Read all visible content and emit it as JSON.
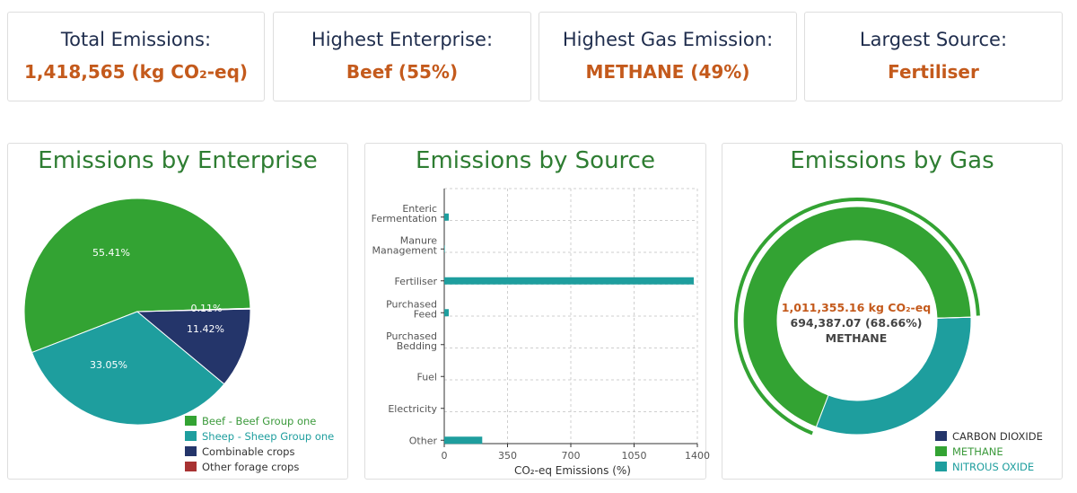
{
  "kpis": [
    {
      "label": "Total Emissions:",
      "value": "1,418,565 (kg CO₂-eq)"
    },
    {
      "label": "Highest Enterprise:",
      "value": "Beef (55%)"
    },
    {
      "label": "Highest Gas Emission:",
      "value": "METHANE (49%)"
    },
    {
      "label": "Largest Source:",
      "value": "Fertiliser"
    }
  ],
  "colors": {
    "green": "#33a333",
    "teal": "#1e9e9e",
    "navy": "#24356a",
    "red": "#a83232",
    "title_green": "#2e7d32",
    "accent_orange": "#c45a1c"
  },
  "charts": {
    "enterprise": {
      "title": "Emissions by Enterprise",
      "legend": [
        {
          "label": "Beef - Beef Group one",
          "color": "#33a333",
          "text_color": "#3c9a3c"
        },
        {
          "label": "Sheep - Sheep Group one",
          "color": "#1e9e9e",
          "text_color": "#1e9e9e"
        },
        {
          "label": "Combinable crops",
          "color": "#24356a",
          "text_color": "#333333"
        },
        {
          "label": "Other forage crops",
          "color": "#a83232",
          "text_color": "#333333"
        }
      ]
    },
    "source": {
      "title": "Emissions by Source",
      "xlabel": "CO₂-eq Emissions (%)"
    },
    "gas": {
      "title": "Emissions by Gas",
      "center_line1": "1,011,355.16 kg CO₂-eq",
      "center_line2": "694,387.07 (68.66%)",
      "center_line3": "METHANE",
      "legend": [
        {
          "label": "CARBON DIOXIDE",
          "color": "#24356a",
          "text_color": "#333333"
        },
        {
          "label": "METHANE",
          "color": "#33a333",
          "text_color": "#3c9a3c"
        },
        {
          "label": "NITROUS OXIDE",
          "color": "#1e9e9e",
          "text_color": "#1e9e9e"
        }
      ]
    }
  },
  "chart_data": [
    {
      "type": "pie",
      "title": "Emissions by Enterprise",
      "categories": [
        "Beef - Beef Group one",
        "Sheep - Sheep Group one",
        "Combinable crops",
        "Other forage crops"
      ],
      "values": [
        55.41,
        33.05,
        11.42,
        0.11
      ],
      "labels": [
        "55.41%",
        "33.05%",
        "11.42%",
        "0.11%"
      ],
      "legend_position": "bottom-right"
    },
    {
      "type": "bar",
      "orientation": "horizontal",
      "title": "Emissions by Source",
      "categories": [
        "Enteric Fermentation",
        "Manure Management",
        "Fertiliser",
        "Purchased Feed",
        "Purchased Bedding",
        "Fuel",
        "Electricity",
        "Other"
      ],
      "values": [
        25,
        3,
        1380,
        25,
        0,
        0,
        0,
        210
      ],
      "xlabel": "CO₂-eq Emissions (%)",
      "xticks": [
        0,
        350,
        700,
        1050,
        1400
      ],
      "xlim": [
        0,
        1400
      ],
      "grid": true
    },
    {
      "type": "pie",
      "variant": "donut",
      "title": "Emissions by Gas",
      "categories": [
        "CARBON DIOXIDE",
        "METHANE",
        "NITROUS OXIDE"
      ],
      "values": [
        0.01,
        68.66,
        31.33
      ],
      "highlighted": "METHANE",
      "legend_position": "bottom-right"
    }
  ]
}
